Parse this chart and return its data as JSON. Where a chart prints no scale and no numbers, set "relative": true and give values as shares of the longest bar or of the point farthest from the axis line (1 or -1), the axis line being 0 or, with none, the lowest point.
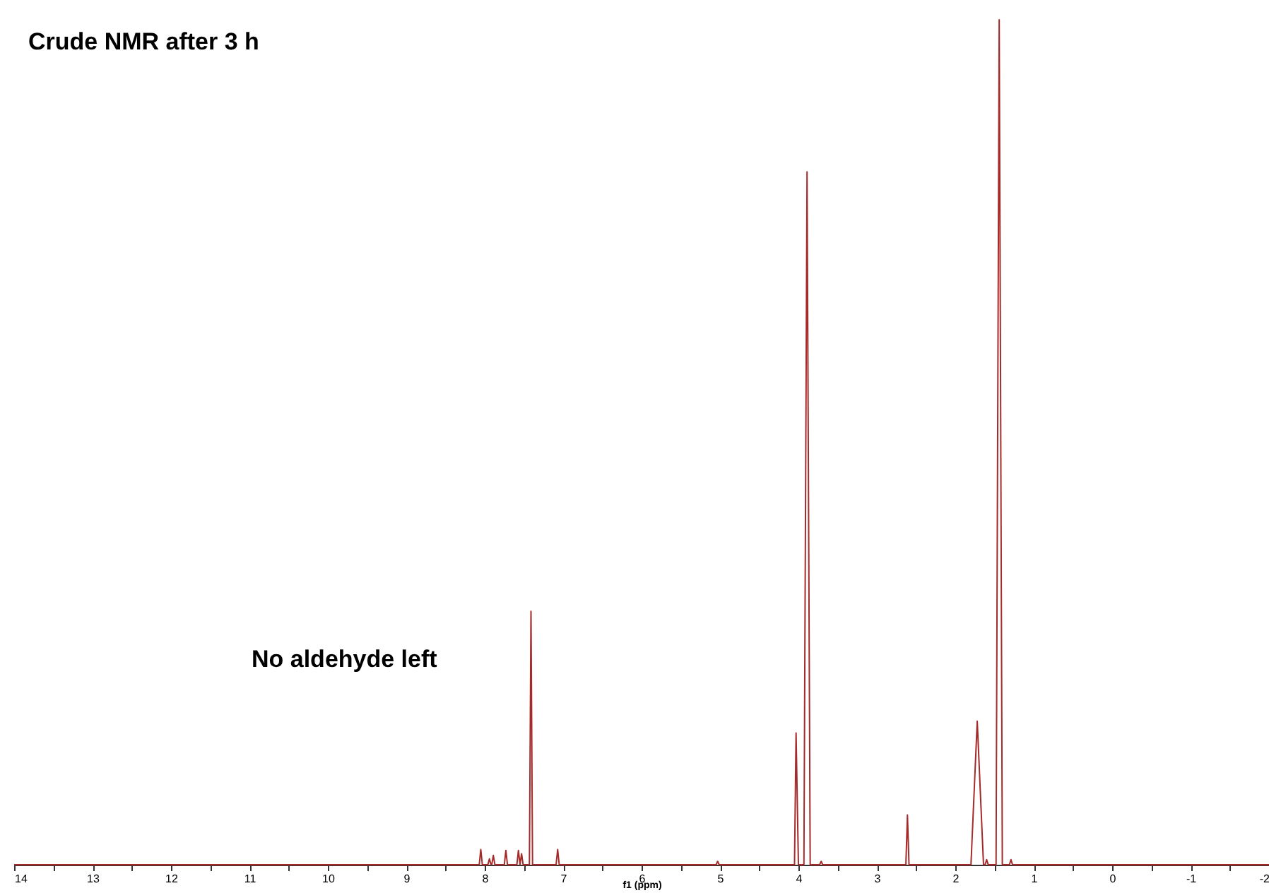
{
  "chart_data": {
    "type": "line",
    "title": "Crude NMR after 3 h",
    "xlabel": "f1 (ppm)",
    "annotations": [
      "No aldehyde left"
    ],
    "relative": true,
    "grid": false,
    "marker": "none",
    "line_style": "solid",
    "xlim": [
      14,
      -2
    ],
    "xticks": [
      14,
      {
        "value": 13.5,
        "label": null
      },
      13,
      {
        "value": 12.5,
        "label": null
      },
      12,
      {
        "value": 11.5,
        "label": null
      },
      11,
      {
        "value": 10.5,
        "label": null
      },
      10,
      {
        "value": 9.5,
        "label": null
      },
      9,
      {
        "value": 8.5,
        "label": null
      },
      8,
      {
        "value": 7.5,
        "label": null
      },
      7,
      {
        "value": 6.5,
        "label": null
      },
      6,
      {
        "value": 5.5,
        "label": null
      },
      5,
      {
        "value": 4.5,
        "label": null
      },
      4,
      {
        "value": 3.5,
        "label": null
      },
      3,
      {
        "value": 2.5,
        "label": null
      },
      2,
      {
        "value": 1.5,
        "label": null
      },
      1,
      {
        "value": 0.5,
        "label": null
      },
      0,
      {
        "value": -0.5,
        "label": null
      },
      -1,
      {
        "value": -1.5,
        "label": null
      },
      -2
    ],
    "series": [
      {
        "color": "#a52a2a",
        "x": [
          14,
          8.07,
          8.05,
          8.03,
          7.96,
          7.94,
          7.92,
          7.91,
          7.89,
          7.87,
          7.75,
          7.73,
          7.71,
          7.59,
          7.57,
          7.55,
          7.53,
          7.51,
          7.43,
          7.41,
          7.39,
          7.09,
          7.07,
          7.05,
          5.05,
          5.03,
          5.01,
          4.05,
          4.03,
          4.0,
          3.93,
          3.89,
          3.85,
          3.73,
          3.71,
          3.69,
          2.63,
          2.61,
          2.59,
          1.8,
          1.72,
          1.64,
          1.62,
          1.6,
          1.58,
          1.48,
          1.44,
          1.4,
          1.31,
          1.29,
          1.27,
          -2
        ],
        "values": [
          0,
          0,
          0.018,
          0,
          0,
          0.007,
          0,
          0,
          0.011,
          0,
          0,
          0.017,
          0,
          0,
          0.017,
          0,
          0.013,
          0,
          0,
          0.3,
          0,
          0,
          0.018,
          0,
          0,
          0.004,
          0,
          0,
          0.156,
          0,
          0,
          0.82,
          0,
          0,
          0.004,
          0,
          0,
          0.059,
          0,
          0,
          0.17,
          0,
          0,
          0.006,
          0,
          0,
          1.0,
          0,
          0,
          0.006,
          0,
          0
        ]
      }
    ]
  }
}
